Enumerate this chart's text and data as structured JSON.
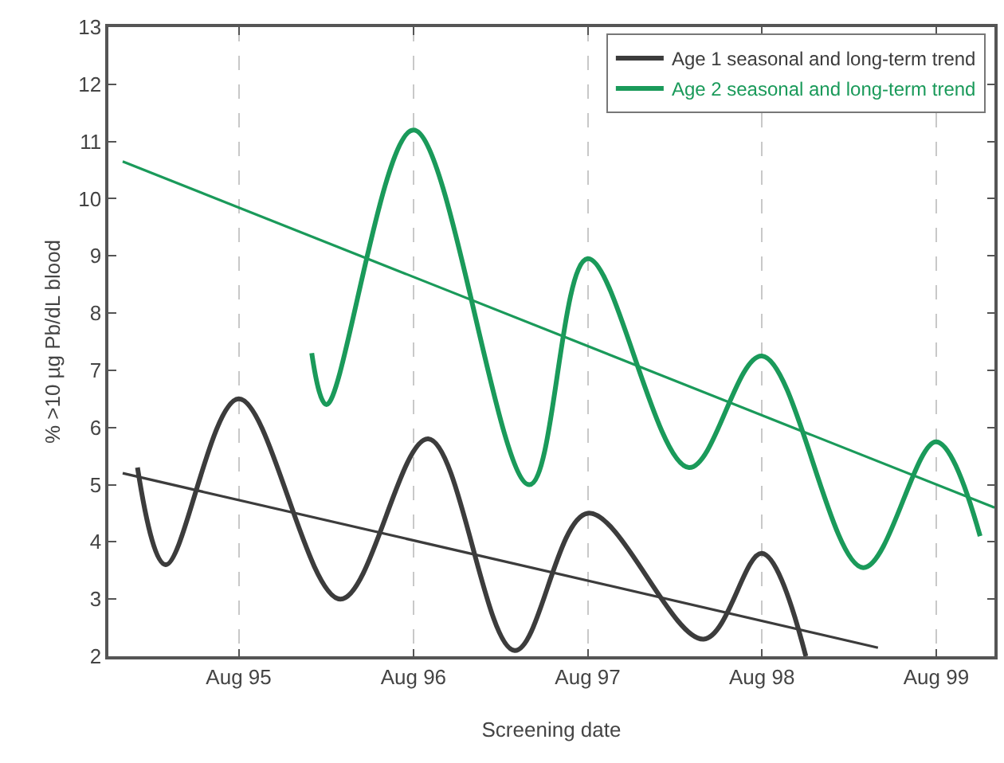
{
  "chart_data": {
    "type": "line",
    "xlabel": "Screening date",
    "ylabel": "% >10 µg Pb/dL blood",
    "xlim": [
      "1994-11",
      "1999-12"
    ],
    "ylim": [
      2,
      13
    ],
    "xticks": [
      {
        "value": "1995-08",
        "label": "Aug 95"
      },
      {
        "value": "1996-08",
        "label": "Aug 96"
      },
      {
        "value": "1997-08",
        "label": "Aug 97"
      },
      {
        "value": "1998-08",
        "label": "Aug 98"
      },
      {
        "value": "1999-08",
        "label": "Aug 99"
      }
    ],
    "yticks": [
      2,
      3,
      4,
      5,
      6,
      7,
      8,
      9,
      10,
      11,
      12,
      13
    ],
    "grid": "x",
    "legend": "top right",
    "marker": "none",
    "line_style": "solid",
    "series": [
      {
        "name": "Age 1 seasonal and long-term trend",
        "color": "#3c3c3c",
        "x": [
          "1995-01",
          "1995-03",
          "1995-08",
          "1996-03",
          "1996-09",
          "1997-03",
          "1997-08",
          "1998-04",
          "1998-08",
          "1998-11"
        ],
        "values": [
          5.3,
          3.6,
          6.5,
          3.0,
          5.8,
          2.1,
          4.5,
          2.3,
          3.8,
          2.0
        ]
      },
      {
        "color": "#3c3c3c",
        "x": [
          "1994-12",
          "1999-04"
        ],
        "values": [
          5.2,
          2.15
        ]
      },
      {
        "name": "Age 2 seasonal and long-term trend",
        "color": "#1a9a5a",
        "x": [
          "1996-01",
          "1996-02",
          "1996-08",
          "1997-04",
          "1997-08",
          "1998-03",
          "1998-08",
          "1999-03",
          "1999-08",
          "1999-11"
        ],
        "values": [
          7.3,
          6.4,
          11.2,
          5.0,
          8.95,
          5.3,
          7.25,
          3.55,
          5.75,
          4.1
        ]
      },
      {
        "color": "#1a9a5a",
        "x": [
          "1994-12",
          "1999-12"
        ],
        "values": [
          10.65,
          4.6
        ]
      }
    ]
  }
}
